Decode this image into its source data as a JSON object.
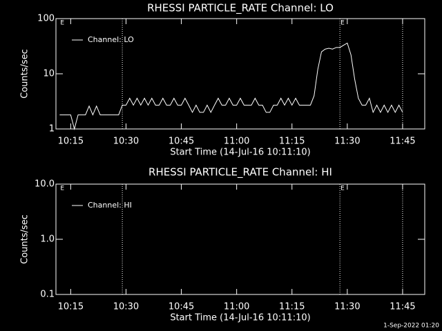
{
  "chart_data": [
    {
      "type": "line",
      "title": "RHESSI PARTICLE_RATE Channel: LO",
      "xlabel": "Start Time (14-Jul-16 10:11:10)",
      "ylabel": "Counts/sec",
      "x": [
        "10:12",
        "10:13",
        "10:14",
        "10:15",
        "10:16",
        "10:17",
        "10:18",
        "10:19",
        "10:20",
        "10:21",
        "10:22",
        "10:23",
        "10:24",
        "10:25",
        "10:26",
        "10:27",
        "10:28",
        "10:29",
        "10:30",
        "10:31",
        "10:32",
        "10:33",
        "10:34",
        "10:35",
        "10:36",
        "10:37",
        "10:38",
        "10:39",
        "10:40",
        "10:41",
        "10:42",
        "10:43",
        "10:44",
        "10:45",
        "10:46",
        "10:47",
        "10:48",
        "10:49",
        "10:50",
        "10:51",
        "10:52",
        "10:53",
        "10:54",
        "10:55",
        "10:56",
        "10:57",
        "10:58",
        "10:59",
        "11:00",
        "11:01",
        "11:02",
        "11:03",
        "11:04",
        "11:05",
        "11:06",
        "11:07",
        "11:08",
        "11:09",
        "11:10",
        "11:11",
        "11:12",
        "11:13",
        "11:14",
        "11:15",
        "11:16",
        "11:17",
        "11:18",
        "11:19",
        "11:20",
        "11:21",
        "11:22",
        "11:23",
        "11:24",
        "11:25",
        "11:26",
        "11:27",
        "11:28",
        "11:29",
        "11:30",
        "11:31",
        "11:32",
        "11:33",
        "11:34",
        "11:35",
        "11:36",
        "11:37",
        "11:38",
        "11:39",
        "11:40",
        "11:41",
        "11:42",
        "11:43",
        "11:44",
        "11:45"
      ],
      "series": [
        {
          "name": "Channel: LO",
          "color": "#ffffff",
          "values": [
            1.8,
            1.8,
            1.8,
            1.8,
            1.0,
            1.8,
            1.8,
            1.8,
            2.6,
            1.8,
            2.6,
            1.8,
            1.8,
            1.8,
            1.8,
            1.8,
            1.8,
            2.7,
            2.7,
            3.6,
            2.7,
            3.6,
            2.7,
            3.6,
            2.7,
            3.6,
            2.7,
            2.7,
            3.6,
            2.7,
            2.7,
            3.6,
            2.7,
            2.7,
            3.6,
            2.7,
            2.0,
            2.7,
            2.0,
            2.0,
            2.7,
            2.0,
            2.7,
            3.6,
            2.7,
            2.7,
            3.6,
            2.7,
            2.7,
            3.6,
            2.7,
            2.7,
            2.7,
            3.6,
            2.7,
            2.7,
            2.0,
            2.0,
            2.7,
            2.7,
            3.6,
            2.7,
            3.6,
            2.7,
            3.6,
            2.7,
            2.7,
            2.7,
            2.7,
            4,
            12,
            25,
            28,
            29,
            28,
            30,
            30,
            33,
            36,
            22,
            8,
            3.6,
            2.7,
            2.7,
            3.6,
            2.0,
            2.7,
            2.0,
            2.7,
            2.0,
            2.7,
            2.0,
            2.7,
            2.0
          ]
        }
      ],
      "xlim": [
        "10:11",
        "11:51"
      ],
      "xticks": [
        "10:15",
        "10:30",
        "10:45",
        "11:00",
        "11:15",
        "11:30",
        "11:45"
      ],
      "ylim": [
        1,
        100
      ],
      "yticks": [
        1,
        10,
        100
      ],
      "log_y": true,
      "vlines": [
        "10:29",
        "11:28",
        "11:45"
      ],
      "annotations": [
        {
          "x": "10:12",
          "text": "E"
        },
        {
          "x": "11:28",
          "text": "E"
        }
      ],
      "legend": "upper left"
    },
    {
      "type": "line",
      "title": "RHESSI PARTICLE_RATE Channel: HI",
      "xlabel": "Start Time (14-Jul-16 10:11:10)",
      "ylabel": "Counts/sec",
      "x": [],
      "series": [
        {
          "name": "Channel: HI",
          "color": "#ffffff",
          "values": []
        }
      ],
      "xlim": [
        "10:11",
        "11:51"
      ],
      "xticks": [
        "10:15",
        "10:30",
        "10:45",
        "11:00",
        "11:15",
        "11:30",
        "11:45"
      ],
      "ylim": [
        0.1,
        10
      ],
      "yticks": [
        {
          "value": 0.1,
          "label": "0.1"
        },
        {
          "value": 1,
          "label": "1.0"
        },
        {
          "value": 10,
          "label": "10.0"
        }
      ],
      "log_y": true,
      "vlines": [
        "10:29",
        "11:28",
        "11:45"
      ],
      "annotations": [
        {
          "x": "10:12",
          "text": "E"
        },
        {
          "x": "11:28",
          "text": "E"
        }
      ],
      "legend": "upper left"
    }
  ],
  "footer": "1-Sep-2022 01:20"
}
